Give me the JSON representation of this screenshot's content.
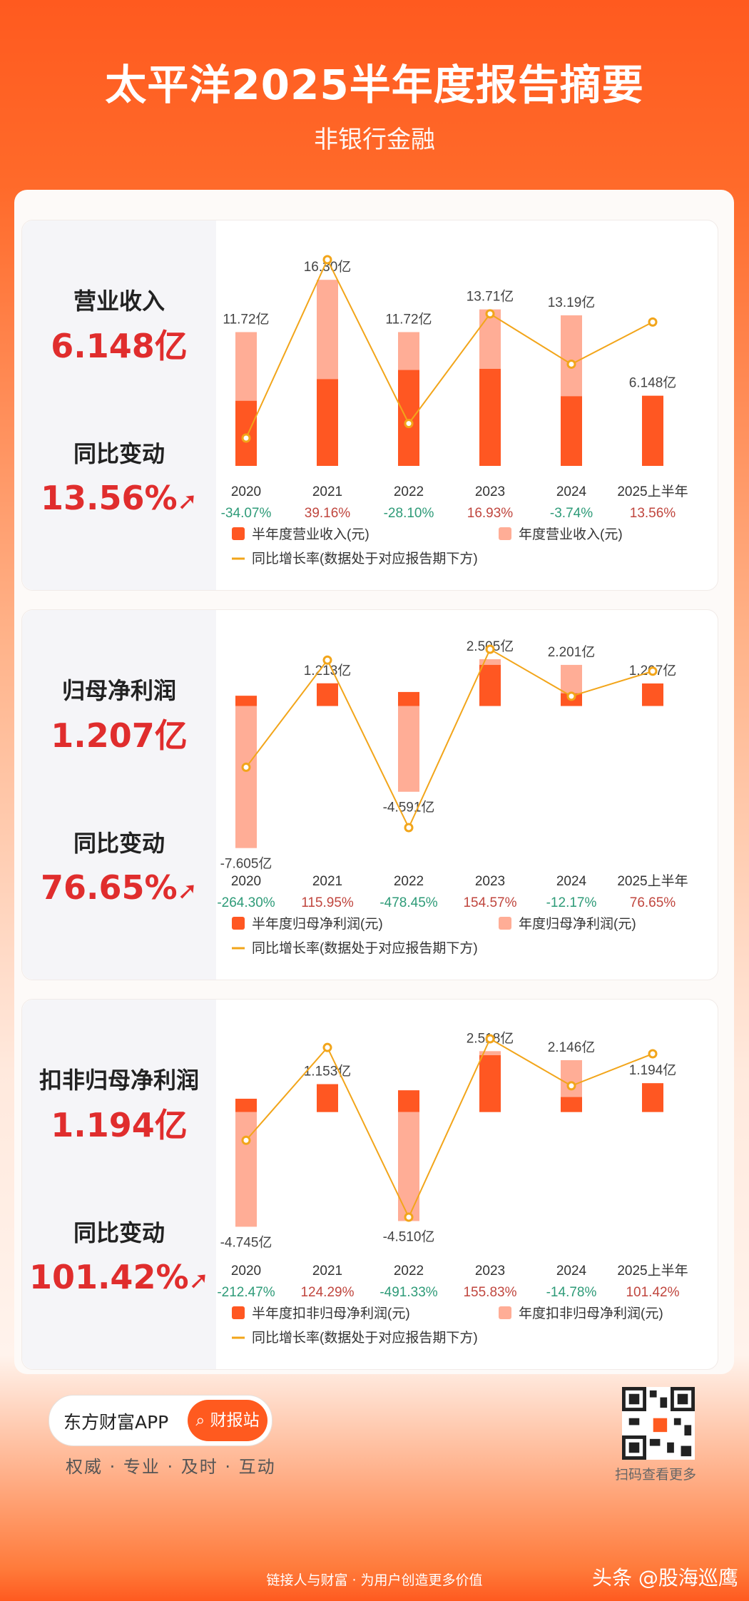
{
  "header": {
    "title": "太平洋2025半年度报告摘要",
    "subtitle": "非银行金融"
  },
  "colors": {
    "half_year_bar": "#ff5722",
    "annual_bar": "#ffad96",
    "growth_line": "#f2a51a",
    "positive_growth": "#c0463e",
    "negative_growth": "#2e9b78",
    "headline_red": "#e02d2d"
  },
  "sections": [
    {
      "metric_label": "营业收入",
      "metric_value": "6.148亿",
      "change_label": "同比变动",
      "change_value": "13.56%",
      "arrow_icon": "up-arrow-icon"
    },
    {
      "metric_label": "归母净利润",
      "metric_value": "1.207亿",
      "change_label": "同比变动",
      "change_value": "76.65%",
      "arrow_icon": "up-arrow-icon"
    },
    {
      "metric_label": "扣非归母净利润",
      "metric_value": "1.194亿",
      "change_label": "同比变动",
      "change_value": "101.42%",
      "arrow_icon": "up-arrow-icon"
    }
  ],
  "chart_data": [
    {
      "type": "bar",
      "categories": [
        "2020",
        "2021",
        "2022",
        "2023",
        "2024",
        "2025上半年"
      ],
      "series": [
        {
          "name": "半年度营业收入(元)",
          "values": [
            5.7,
            7.6,
            8.4,
            8.5,
            6.1,
            6.148
          ]
        },
        {
          "name": "年度营业收入(元)",
          "values": [
            11.72,
            16.3,
            11.72,
            13.71,
            13.19,
            null
          ]
        }
      ],
      "value_labels": [
        "11.72亿",
        "16.30亿",
        "11.72亿",
        "13.71亿",
        "13.19亿",
        "6.148亿"
      ],
      "growth_labels": [
        "-34.07%",
        "39.16%",
        "-28.10%",
        "16.93%",
        "-3.74%",
        "13.56%"
      ],
      "growth_values": [
        -34.07,
        39.16,
        -28.1,
        16.93,
        -3.74,
        13.56
      ],
      "line_series_name": "同比增长率(数据处于对应报告期下方)",
      "ylim": [
        0,
        18
      ]
    },
    {
      "type": "bar",
      "categories": [
        "2020",
        "2021",
        "2022",
        "2023",
        "2024",
        "2025上半年"
      ],
      "series": [
        {
          "name": "半年度归母净利润(元)",
          "values": [
            0.55,
            1.213,
            0.75,
            2.2,
            0.68,
            1.207
          ]
        },
        {
          "name": "年度归母净利润(元)",
          "values": [
            -7.605,
            1.213,
            -4.591,
            2.505,
            2.201,
            null
          ]
        }
      ],
      "value_labels": [
        "-7.605亿",
        "1.213亿",
        "-4.591亿",
        "2.505亿",
        "2.201亿",
        "1.207亿"
      ],
      "growth_labels": [
        "-264.30%",
        "115.95%",
        "-478.45%",
        "154.57%",
        "-12.17%",
        "76.65%"
      ],
      "growth_values": [
        -264.3,
        115.95,
        -478.45,
        154.57,
        -12.17,
        76.65
      ],
      "line_series_name": "同比增长率(数据处于对应报告期下方)",
      "ylim": [
        -8,
        3
      ]
    },
    {
      "type": "bar",
      "categories": [
        "2020",
        "2021",
        "2022",
        "2023",
        "2024",
        "2025上半年"
      ],
      "series": [
        {
          "name": "半年度扣非归母净利润(元)",
          "values": [
            0.55,
            1.153,
            0.9,
            2.35,
            0.62,
            1.194
          ]
        },
        {
          "name": "年度扣非归母净利润(元)",
          "values": [
            -4.745,
            1.153,
            -4.51,
            2.518,
            2.146,
            null
          ]
        }
      ],
      "value_labels": [
        "-4.745亿",
        "1.153亿",
        "-4.510亿",
        "2.518亿",
        "2.146亿",
        "1.194亿"
      ],
      "growth_labels": [
        "-212.47%",
        "124.29%",
        "-491.33%",
        "155.83%",
        "-14.78%",
        "101.42%"
      ],
      "growth_values": [
        -212.47,
        124.29,
        -491.33,
        155.83,
        -14.78,
        101.42
      ],
      "line_series_name": "同比增长率(数据处于对应报告期下方)",
      "ylim": [
        -5.5,
        3
      ]
    }
  ],
  "footer": {
    "app_name": "东方财富APP",
    "button_label": "财报站",
    "slogan": "权威 · 专业 · 及时 · 互动",
    "qr_caption": "扫码查看更多",
    "bottom_line": "链接人与财富 · 为用户创造更多价值",
    "watermark": "头条 @股海巡鹰"
  }
}
